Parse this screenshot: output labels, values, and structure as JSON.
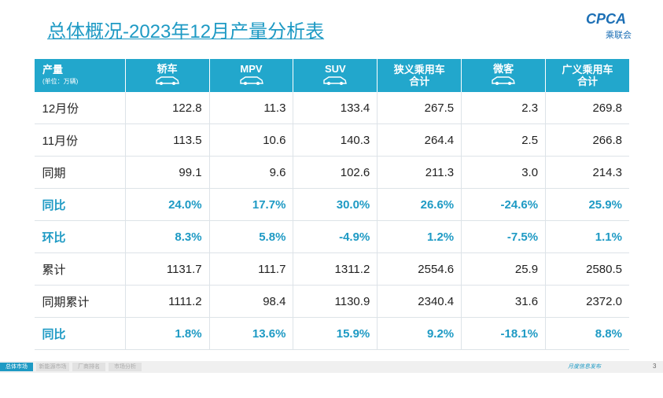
{
  "header": {
    "title": "总体概况-2023年12月产量分析表",
    "logo": "CPCA",
    "logo_sub": "乘联会"
  },
  "table": {
    "corner": "产量",
    "corner_unit": "(单位：万辆)",
    "columns": [
      "轿车",
      "MPV",
      "SUV",
      "狭义乘用车\n合计",
      "微客",
      "广义乘用车\n合计"
    ],
    "rows": [
      [
        "12月份",
        "122.8",
        "11.3",
        "133.4",
        "267.5",
        "2.3",
        "269.8"
      ],
      [
        "11月份",
        "113.5",
        "10.6",
        "140.3",
        "264.4",
        "2.5",
        "266.8"
      ],
      [
        "同期",
        "99.1",
        "9.6",
        "102.6",
        "211.3",
        "3.0",
        "214.3"
      ],
      [
        "同比",
        "24.0%",
        "17.7%",
        "30.0%",
        "26.6%",
        "-24.6%",
        "25.9%"
      ],
      [
        "环比",
        "8.3%",
        "5.8%",
        "-4.9%",
        "1.2%",
        "-7.5%",
        "1.1%"
      ],
      [
        "累计",
        "1131.7",
        "111.7",
        "1311.2",
        "2554.6",
        "25.9",
        "2580.5"
      ],
      [
        "同期累计",
        "1111.2",
        "98.4",
        "1130.9",
        "2340.4",
        "31.6",
        "2372.0"
      ],
      [
        "同比",
        "1.8%",
        "13.6%",
        "15.9%",
        "9.2%",
        "-18.1%",
        "8.8%"
      ]
    ]
  },
  "footer": {
    "tabs": [
      "总体市场",
      "新能源市场",
      "厂商排名",
      "市场分析"
    ],
    "note": "月度信息发布",
    "page": "3"
  }
}
